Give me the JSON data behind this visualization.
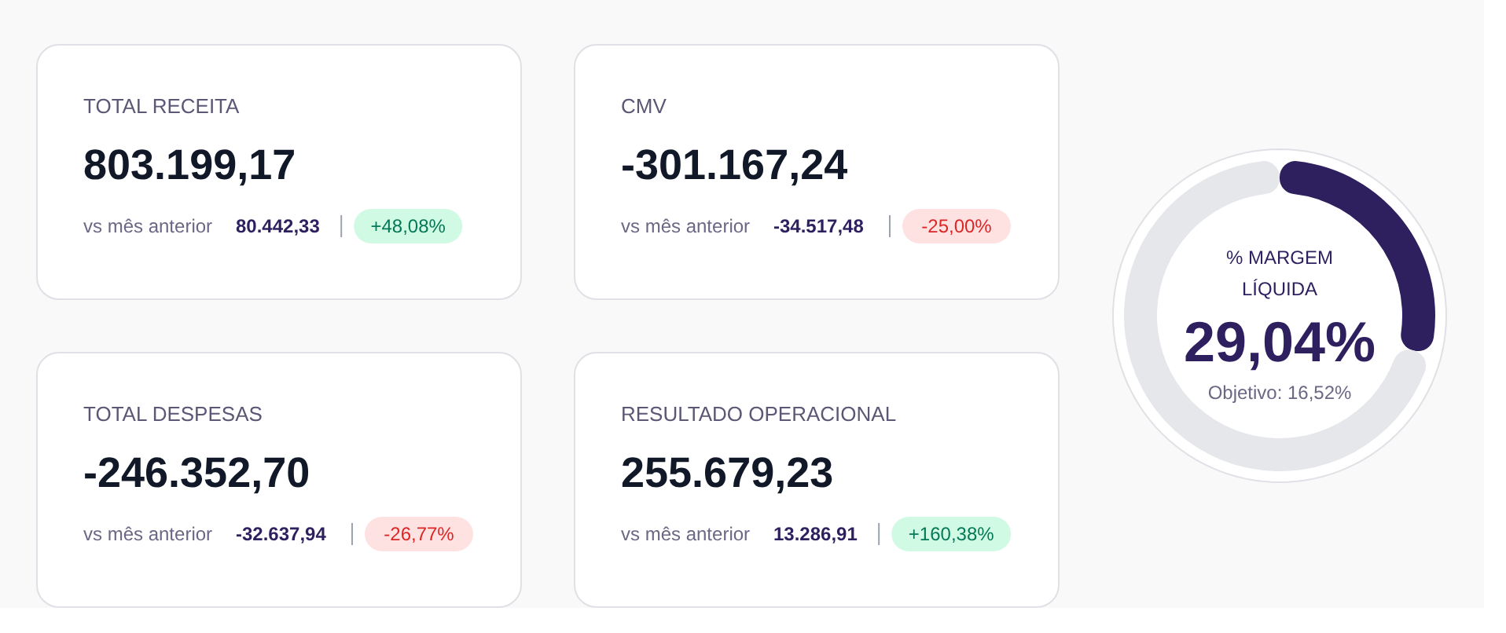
{
  "chart_data": [
    {
      "type": "other",
      "title": "TOTAL RECEITA",
      "annotations": [
        "803.199,17",
        "vs mês anterior",
        "80.442,33",
        "+48,08%"
      ],
      "colors": [
        "#d1fae5",
        "#047857"
      ]
    },
    {
      "type": "other",
      "title": "CMV",
      "annotations": [
        "-301.167,24",
        "vs mês anterior",
        "-34.517,48",
        "-25,00%"
      ],
      "colors": [
        "#fee2e2",
        "#dc2626"
      ]
    },
    {
      "type": "other",
      "title": "TOTAL DESPESAS",
      "annotations": [
        "-246.352,70",
        "vs mês anterior",
        "-32.637,94",
        "-26,77%"
      ],
      "colors": [
        "#fee2e2",
        "#dc2626"
      ]
    },
    {
      "type": "other",
      "title": "RESULTADO OPERACIONAL",
      "annotations": [
        "255.679,23",
        "vs mês anterior",
        "13.286,91",
        "+160,38%"
      ],
      "colors": [
        "#d1fae5",
        "#047857"
      ]
    },
    {
      "type": "donut",
      "title": "% MARGEM LÍQUIDA",
      "categories": [
        null,
        null
      ],
      "values": [
        29.04,
        70.96
      ],
      "colors": [
        "#2e1f5e",
        "#e5e7eb"
      ],
      "annotations": [
        "29,04%",
        "Objetivo: 16,52%"
      ]
    }
  ]
}
